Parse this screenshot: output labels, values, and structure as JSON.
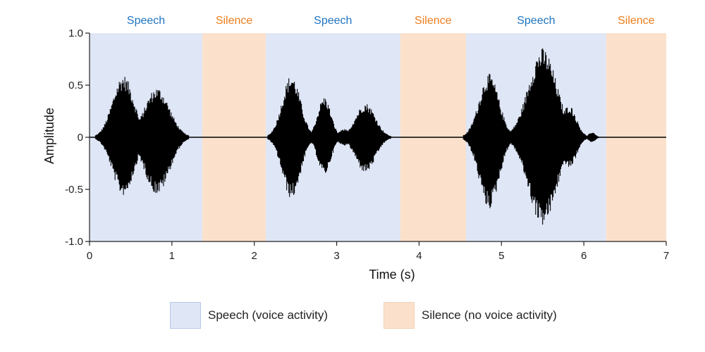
{
  "chart_data": {
    "type": "line",
    "xlabel": "Time (s)",
    "ylabel": "Amplitude",
    "xlim": [
      0,
      7
    ],
    "ylim": [
      -1.0,
      1.0
    ],
    "x_ticks": [
      0,
      1,
      2,
      3,
      4,
      5,
      6,
      7
    ],
    "x_tick_labels": [
      "0",
      "1",
      "2",
      "3",
      "4",
      "5",
      "6",
      "7"
    ],
    "y_ticks": [
      1.0,
      0.5,
      0,
      -0.5,
      -1.0
    ],
    "y_tick_labels": [
      "1.0",
      "0.5",
      "0",
      "-0.5",
      "-1.0"
    ],
    "grid": false,
    "segments": [
      {
        "label": "Speech",
        "kind": "speech",
        "start": 0.0,
        "end": 1.37
      },
      {
        "label": "Silence",
        "kind": "silence",
        "start": 1.37,
        "end": 2.14
      },
      {
        "label": "Speech",
        "kind": "speech",
        "start": 2.14,
        "end": 3.77
      },
      {
        "label": "Silence",
        "kind": "silence",
        "start": 3.77,
        "end": 4.57
      },
      {
        "label": "Speech",
        "kind": "speech",
        "start": 4.57,
        "end": 6.27
      },
      {
        "label": "Silence",
        "kind": "silence",
        "start": 6.27,
        "end": 7.0
      }
    ],
    "bursts": [
      {
        "center": 0.41,
        "peak_pos": 0.6,
        "peak_neg": -0.56,
        "width": 0.13
      },
      {
        "center": 0.82,
        "peak_pos": 0.48,
        "peak_neg": -0.55,
        "width": 0.15
      },
      {
        "center": 2.45,
        "peak_pos": 0.6,
        "peak_neg": -0.59,
        "width": 0.11
      },
      {
        "center": 2.85,
        "peak_pos": 0.39,
        "peak_neg": -0.36,
        "width": 0.08
      },
      {
        "center": 3.1,
        "peak_pos": 0.08,
        "peak_neg": -0.08,
        "width": 0.08
      },
      {
        "center": 3.35,
        "peak_pos": 0.33,
        "peak_neg": -0.34,
        "width": 0.12
      },
      {
        "center": 4.85,
        "peak_pos": 0.61,
        "peak_neg": -0.69,
        "width": 0.12
      },
      {
        "center": 5.5,
        "peak_pos": 0.86,
        "peak_neg": -0.85,
        "width": 0.17
      },
      {
        "center": 5.82,
        "peak_pos": 0.31,
        "peak_neg": -0.3,
        "width": 0.09
      },
      {
        "center": 6.1,
        "peak_pos": 0.05,
        "peak_neg": -0.05,
        "width": 0.04
      }
    ],
    "legend": [
      {
        "kind": "speech",
        "label": "Speech (voice activity)"
      },
      {
        "kind": "silence",
        "label": "Silence (no voice activity)"
      }
    ],
    "legend_position": "bottom"
  },
  "colors": {
    "speech_bg": "#dfe6f6",
    "silence_bg": "#fbe1cc",
    "speech_text": "#1f74c2",
    "silence_text": "#ee7d1c",
    "waveform": "#000000",
    "axis": "#222222"
  }
}
